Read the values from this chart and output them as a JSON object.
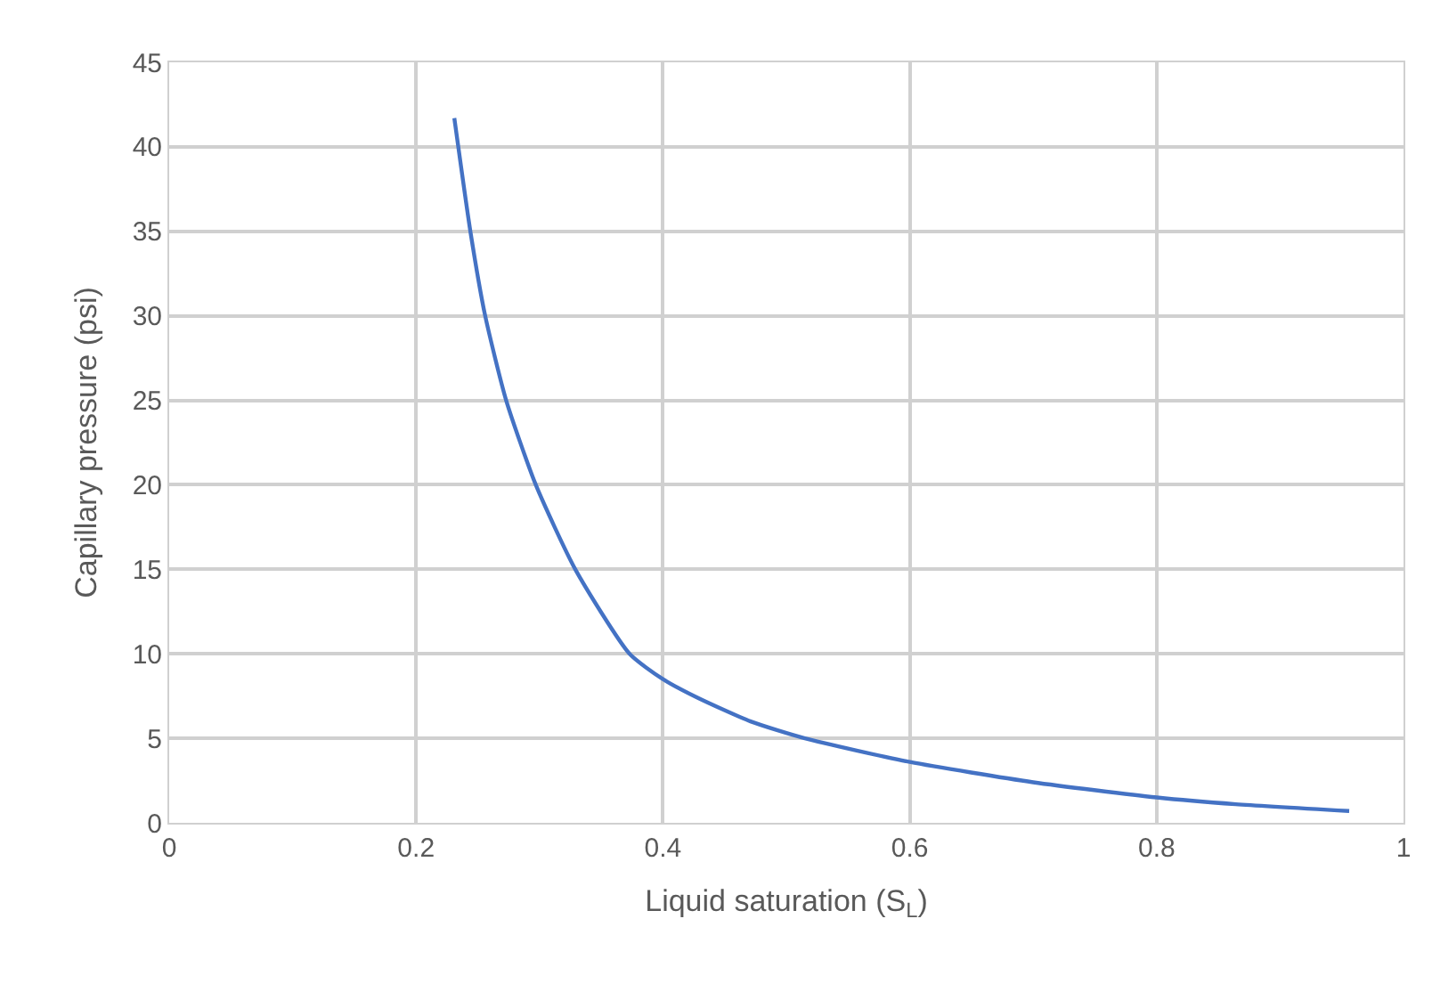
{
  "chart_data": {
    "type": "line",
    "xlabel": "Liquid saturation (S$_{L}$)",
    "ylabel": "Capillary pressure (psi)",
    "series": [
      {
        "color": "#4472c4",
        "x": [
          0.231,
          0.244,
          0.256,
          0.273,
          0.297,
          0.329,
          0.373,
          0.4,
          0.428,
          0.471,
          0.515,
          0.6,
          0.7,
          0.8,
          0.864,
          0.956
        ],
        "values": [
          41.7,
          35.0,
          30.0,
          25.0,
          20.0,
          15.0,
          10.0,
          8.5,
          7.4,
          6.0,
          5.0,
          3.6,
          2.4,
          1.5,
          1.1,
          0.7
        ]
      }
    ],
    "xlim": [
      0,
      1
    ],
    "xticks": [
      0,
      0.2,
      0.4,
      0.6,
      0.8,
      1
    ],
    "ylim": [
      0,
      45
    ],
    "yticks": [
      0,
      5,
      10,
      15,
      20,
      25,
      30,
      35,
      40,
      45
    ],
    "grid": true,
    "marker": "none",
    "line_style": "solid"
  }
}
